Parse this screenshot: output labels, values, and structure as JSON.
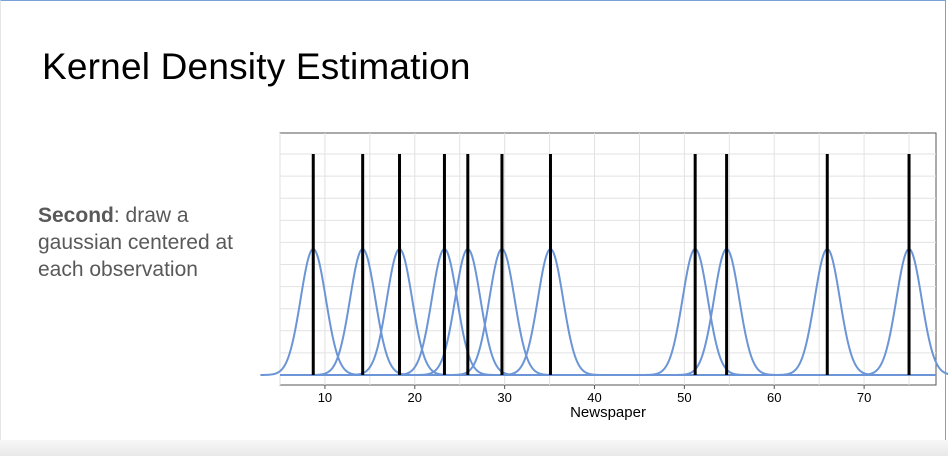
{
  "slide": {
    "title": "Kernel Density Estimation",
    "caption_bold": "Second",
    "caption_rest": ": draw a gaussian centered at each observation"
  },
  "chart_data": {
    "type": "line",
    "xlabel": "Newspaper",
    "ylabel": "",
    "xlim": [
      5,
      78
    ],
    "ylim": [
      0,
      1.05
    ],
    "xticks": [
      10,
      20,
      30,
      40,
      50,
      60,
      70
    ],
    "grid": true,
    "observations": [
      8.7,
      14.2,
      18.3,
      23.3,
      25.9,
      29.7,
      35.1,
      51.2,
      54.7,
      65.9,
      75.0
    ],
    "kernel": {
      "type": "gaussian",
      "bandwidth": 1.4,
      "peak_height": 0.57
    },
    "colors": {
      "kernel": "#6b95d6",
      "observation": "#000000",
      "grid": "#e2e2e2"
    }
  }
}
